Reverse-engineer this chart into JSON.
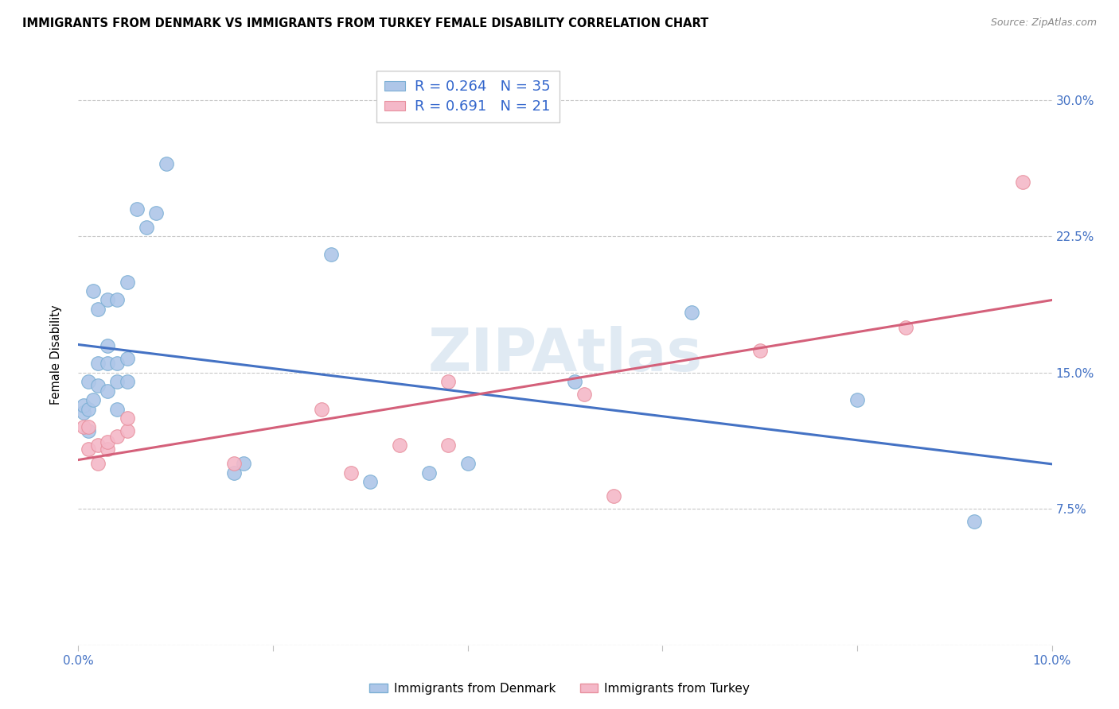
{
  "title": "IMMIGRANTS FROM DENMARK VS IMMIGRANTS FROM TURKEY FEMALE DISABILITY CORRELATION CHART",
  "source": "Source: ZipAtlas.com",
  "ylabel": "Female Disability",
  "xlim": [
    0.0,
    0.1
  ],
  "ylim": [
    0.0,
    0.32
  ],
  "xticks": [
    0.0,
    0.02,
    0.04,
    0.06,
    0.08,
    0.1
  ],
  "yticks": [
    0.0,
    0.075,
    0.15,
    0.225,
    0.3
  ],
  "xticklabels": [
    "0.0%",
    "",
    "",
    "",
    "",
    "10.0%"
  ],
  "yticklabels": [
    "",
    "7.5%",
    "15.0%",
    "22.5%",
    "30.0%"
  ],
  "denmark_color": "#aec6e8",
  "turkey_color": "#f4b8c8",
  "denmark_edge": "#7bafd4",
  "turkey_edge": "#e8909e",
  "line_denmark_color": "#4472c4",
  "line_turkey_color": "#d4607a",
  "legend_r_denmark": "R = 0.264",
  "legend_n_denmark": "N = 35",
  "legend_r_turkey": "R = 0.691",
  "legend_n_turkey": "N = 21",
  "denmark_x": [
    0.0005,
    0.0005,
    0.001,
    0.001,
    0.001,
    0.0015,
    0.0015,
    0.002,
    0.002,
    0.002,
    0.003,
    0.003,
    0.003,
    0.003,
    0.004,
    0.004,
    0.004,
    0.004,
    0.005,
    0.005,
    0.005,
    0.006,
    0.007,
    0.008,
    0.009,
    0.016,
    0.017,
    0.026,
    0.03,
    0.036,
    0.04,
    0.051,
    0.063,
    0.08,
    0.092
  ],
  "denmark_y": [
    0.128,
    0.132,
    0.118,
    0.13,
    0.145,
    0.135,
    0.195,
    0.143,
    0.155,
    0.185,
    0.14,
    0.155,
    0.165,
    0.19,
    0.13,
    0.145,
    0.155,
    0.19,
    0.145,
    0.158,
    0.2,
    0.24,
    0.23,
    0.238,
    0.265,
    0.095,
    0.1,
    0.215,
    0.09,
    0.095,
    0.1,
    0.145,
    0.183,
    0.135,
    0.068
  ],
  "turkey_x": [
    0.0005,
    0.001,
    0.001,
    0.002,
    0.002,
    0.003,
    0.003,
    0.004,
    0.005,
    0.005,
    0.016,
    0.025,
    0.028,
    0.033,
    0.038,
    0.038,
    0.052,
    0.055,
    0.07,
    0.085,
    0.097
  ],
  "turkey_y": [
    0.12,
    0.108,
    0.12,
    0.1,
    0.11,
    0.108,
    0.112,
    0.115,
    0.118,
    0.125,
    0.1,
    0.13,
    0.095,
    0.11,
    0.11,
    0.145,
    0.138,
    0.082,
    0.162,
    0.175,
    0.255
  ]
}
